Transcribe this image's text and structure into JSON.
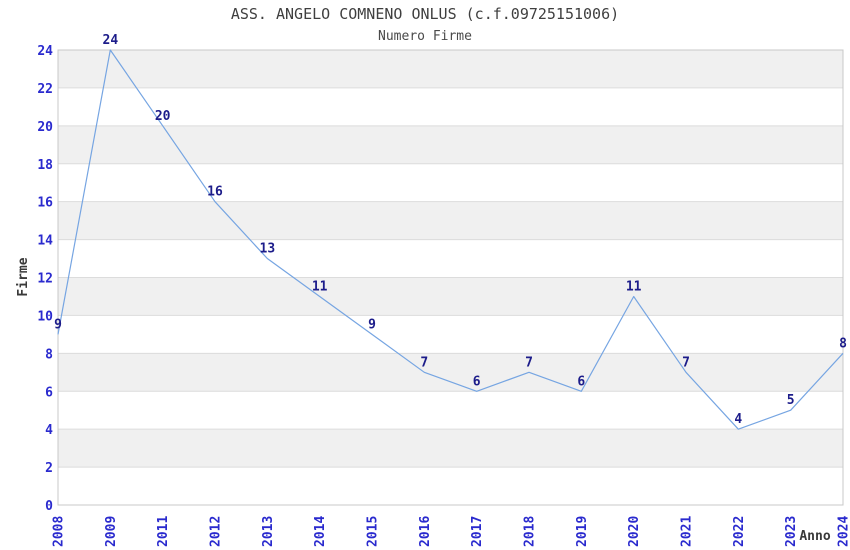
{
  "chart_data": {
    "type": "line",
    "title": "ASS. ANGELO COMNENO ONLUS (c.f.09725151006)",
    "subtitle": "Numero Firme",
    "xlabel": "Anno",
    "ylabel": "Firme",
    "categories": [
      "2008",
      "2009",
      "2011",
      "2012",
      "2013",
      "2014",
      "2015",
      "2016",
      "2017",
      "2018",
      "2019",
      "2020",
      "2021",
      "2022",
      "2023",
      "2024"
    ],
    "values": [
      9,
      24,
      20,
      16,
      13,
      11,
      9,
      7,
      6,
      7,
      6,
      11,
      7,
      4,
      5,
      8
    ],
    "ylim": [
      0,
      24
    ],
    "ytick_step": 2,
    "x_tick_rotation": -90,
    "grid": "alternating-horizontal-bands",
    "legend": "none",
    "colors": {
      "line": "#76a5e2",
      "data_label": "#1c1c8a",
      "tick_label": "#2a2ace",
      "axis_label": "#3a3a3a",
      "title": "#3f3f3f",
      "band": "#f0f0f0",
      "gridline": "#dcdcdc",
      "frame": "#c8c8c8",
      "background": "#ffffff"
    }
  }
}
